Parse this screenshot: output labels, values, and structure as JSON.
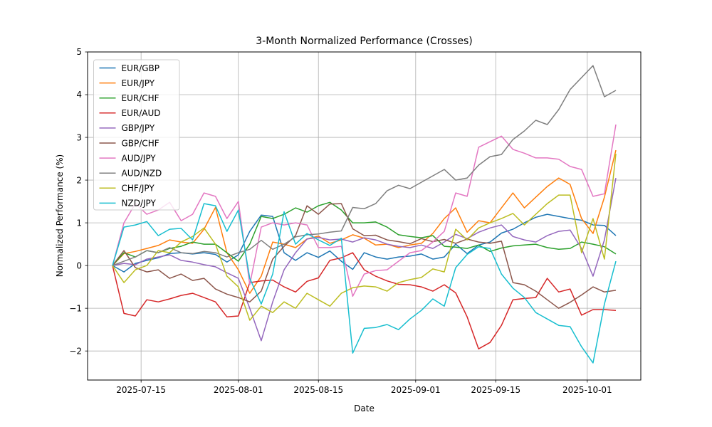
{
  "chart_data": {
    "type": "line",
    "title": "3-Month Normalized Performance (Crosses)",
    "xlabel": "Date",
    "ylabel": "Normalized Performance (%)",
    "grid": true,
    "legend_position": "upper left",
    "ylim": [
      -2.68,
      5.0
    ],
    "y_ticks": [
      -2,
      -1,
      0,
      1,
      2,
      3,
      4,
      5
    ],
    "x_tick_labels": [
      "2025-07-15",
      "2025-08-01",
      "2025-08-15",
      "2025-09-01",
      "2025-09-15",
      "2025-10-01"
    ],
    "x": [
      "2025-07-10",
      "2025-07-12",
      "2025-07-14",
      "2025-07-16",
      "2025-07-18",
      "2025-07-20",
      "2025-07-22",
      "2025-07-24",
      "2025-07-26",
      "2025-07-28",
      "2025-07-30",
      "2025-08-01",
      "2025-08-03",
      "2025-08-05",
      "2025-08-07",
      "2025-08-09",
      "2025-08-11",
      "2025-08-13",
      "2025-08-15",
      "2025-08-17",
      "2025-08-19",
      "2025-08-21",
      "2025-08-23",
      "2025-08-25",
      "2025-08-27",
      "2025-08-29",
      "2025-08-31",
      "2025-09-02",
      "2025-09-04",
      "2025-09-06",
      "2025-09-08",
      "2025-09-10",
      "2025-09-12",
      "2025-09-14",
      "2025-09-16",
      "2025-09-18",
      "2025-09-20",
      "2025-09-22",
      "2025-09-24",
      "2025-09-26",
      "2025-09-28",
      "2025-09-30",
      "2025-10-02",
      "2025-10-04",
      "2025-10-06"
    ],
    "series": [
      {
        "name": "EUR/GBP",
        "color": "#1f77b4",
        "values": [
          0,
          -0.15,
          0.05,
          0.12,
          0.18,
          0.28,
          0.3,
          0.27,
          0.3,
          0.26,
          0.08,
          0.25,
          0.8,
          1.18,
          1.15,
          0.3,
          0.12,
          0.3,
          0.19,
          0.34,
          0.1,
          -0.09,
          0.3,
          0.2,
          0.15,
          0.2,
          0.22,
          0.27,
          0.15,
          0.2,
          0.5,
          0.28,
          0.48,
          0.55,
          0.76,
          0.85,
          1.0,
          1.13,
          1.2,
          1.15,
          1.1,
          1.06,
          0.95,
          0.94,
          0.7
        ]
      },
      {
        "name": "EUR/JPY",
        "color": "#ff7f0e",
        "values": [
          0,
          0.28,
          0.33,
          0.4,
          0.47,
          0.6,
          0.55,
          0.52,
          0.85,
          1.36,
          0.3,
          -0.1,
          -0.65,
          -0.25,
          0.55,
          0.5,
          0.42,
          0.62,
          0.69,
          0.52,
          0.6,
          0.72,
          0.64,
          0.48,
          0.5,
          0.42,
          0.48,
          0.52,
          0.75,
          1.1,
          1.35,
          0.78,
          1.05,
          1.0,
          1.35,
          1.7,
          1.35,
          1.6,
          1.85,
          2.05,
          1.9,
          1.1,
          0.75,
          1.6,
          2.7
        ]
      },
      {
        "name": "EUR/CHF",
        "color": "#2ca02c",
        "values": [
          0,
          0.3,
          0.2,
          0.35,
          0.3,
          0.4,
          0.45,
          0.55,
          0.5,
          0.5,
          0.3,
          0.1,
          0.5,
          1.15,
          1.1,
          1.2,
          1.35,
          1.25,
          1.4,
          1.48,
          1.3,
          1.0,
          1.0,
          1.02,
          0.9,
          0.72,
          0.68,
          0.65,
          0.7,
          0.45,
          0.43,
          0.4,
          0.48,
          0.33,
          0.41,
          0.46,
          0.48,
          0.5,
          0.42,
          0.38,
          0.4,
          0.55,
          0.5,
          0.44,
          0.27
        ]
      },
      {
        "name": "EUR/AUD",
        "color": "#d62728",
        "values": [
          0,
          -1.12,
          -1.18,
          -0.8,
          -0.85,
          -0.78,
          -0.7,
          -0.65,
          -0.75,
          -0.85,
          -1.2,
          -1.18,
          -0.4,
          -0.36,
          -0.34,
          -0.5,
          -0.62,
          -0.37,
          -0.29,
          0.12,
          0.18,
          0.3,
          -0.1,
          -0.25,
          -0.36,
          -0.44,
          -0.45,
          -0.5,
          -0.6,
          -0.45,
          -0.64,
          -1.2,
          -1.95,
          -1.8,
          -1.4,
          -0.8,
          -0.77,
          -0.75,
          -0.3,
          -0.62,
          -0.55,
          -1.16,
          -1.03,
          -1.03,
          -1.05
        ]
      },
      {
        "name": "GBP/JPY",
        "color": "#9467bd",
        "values": [
          0,
          0.05,
          0.02,
          0.15,
          0.2,
          0.25,
          0.12,
          0.08,
          0.02,
          -0.03,
          -0.17,
          -0.3,
          -1.0,
          -1.76,
          -0.85,
          -0.1,
          0.3,
          0.62,
          0.66,
          0.6,
          0.62,
          0.55,
          0.65,
          0.6,
          0.5,
          0.45,
          0.42,
          0.48,
          0.4,
          0.55,
          0.73,
          0.63,
          0.78,
          0.88,
          0.95,
          0.68,
          0.6,
          0.55,
          0.7,
          0.8,
          0.83,
          0.4,
          -0.25,
          0.6,
          2.05
        ]
      },
      {
        "name": "GBP/CHF",
        "color": "#8c564b",
        "values": [
          0,
          0.35,
          -0.05,
          -0.15,
          -0.1,
          -0.3,
          -0.2,
          -0.35,
          -0.3,
          -0.55,
          -0.67,
          -0.75,
          -0.85,
          -0.6,
          0.15,
          0.45,
          0.7,
          1.4,
          1.2,
          1.44,
          1.45,
          0.86,
          0.7,
          0.71,
          0.6,
          0.56,
          0.51,
          0.63,
          0.56,
          0.61,
          0.52,
          0.62,
          0.55,
          0.52,
          0.57,
          -0.4,
          -0.45,
          -0.6,
          -0.8,
          -1.0,
          -0.86,
          -0.69,
          -0.5,
          -0.62,
          -0.58
        ]
      },
      {
        "name": "AUD/JPY",
        "color": "#e377c2",
        "values": [
          0,
          1.0,
          1.45,
          1.2,
          1.3,
          1.48,
          1.05,
          1.2,
          1.7,
          1.62,
          1.1,
          1.5,
          -0.45,
          0.9,
          1.0,
          0.95,
          1.0,
          0.95,
          0.42,
          0.42,
          0.45,
          -0.72,
          -0.2,
          -0.12,
          -0.1,
          0.1,
          0.3,
          0.35,
          0.55,
          0.8,
          1.7,
          1.62,
          2.77,
          2.9,
          3.03,
          2.72,
          2.63,
          2.52,
          2.52,
          2.49,
          2.32,
          2.25,
          1.62,
          1.68,
          3.3
        ]
      },
      {
        "name": "AUD/NZD",
        "color": "#7f7f7f",
        "values": [
          0,
          0.1,
          0.2,
          0.35,
          0.3,
          0.42,
          0.3,
          0.28,
          0.33,
          0.3,
          0.2,
          0.3,
          0.38,
          0.59,
          0.38,
          0.5,
          0.67,
          0.72,
          0.74,
          0.78,
          0.81,
          1.36,
          1.33,
          1.45,
          1.75,
          1.88,
          1.8,
          1.95,
          2.1,
          2.25,
          2.0,
          2.05,
          2.35,
          2.55,
          2.6,
          2.95,
          3.15,
          3.4,
          3.3,
          3.65,
          4.12,
          4.4,
          4.68,
          3.95,
          4.1
        ]
      },
      {
        "name": "CHF/JPY",
        "color": "#bcbd22",
        "values": [
          0,
          -0.4,
          -0.1,
          0.0,
          0.35,
          0.3,
          0.55,
          0.68,
          0.88,
          0.5,
          -0.25,
          -0.5,
          -1.28,
          -0.95,
          -1.1,
          -0.85,
          -1.0,
          -0.65,
          -0.8,
          -0.95,
          -0.65,
          -0.52,
          -0.48,
          -0.5,
          -0.6,
          -0.4,
          -0.33,
          -0.28,
          -0.08,
          -0.15,
          0.85,
          0.6,
          0.88,
          1.0,
          1.1,
          1.22,
          0.95,
          1.2,
          1.45,
          1.65,
          1.65,
          0.3,
          1.1,
          0.15,
          2.62
        ]
      },
      {
        "name": "NZD/JPY",
        "color": "#17becf",
        "values": [
          0,
          0.9,
          0.95,
          1.03,
          0.7,
          0.85,
          0.87,
          0.6,
          1.45,
          1.4,
          0.8,
          1.3,
          -0.3,
          -0.9,
          -0.2,
          1.26,
          0.5,
          0.75,
          0.6,
          0.47,
          0.64,
          -2.05,
          -1.47,
          -1.45,
          -1.38,
          -1.5,
          -1.25,
          -1.05,
          -0.78,
          -0.95,
          -0.05,
          0.26,
          0.44,
          0.4,
          -0.2,
          -0.53,
          -0.75,
          -1.1,
          -1.25,
          -1.4,
          -1.43,
          -1.9,
          -2.28,
          -0.9,
          0.1
        ]
      }
    ],
    "style": {
      "grid_color": "#b0b0b0",
      "spine_color": "#000000",
      "background": "#ffffff"
    }
  }
}
